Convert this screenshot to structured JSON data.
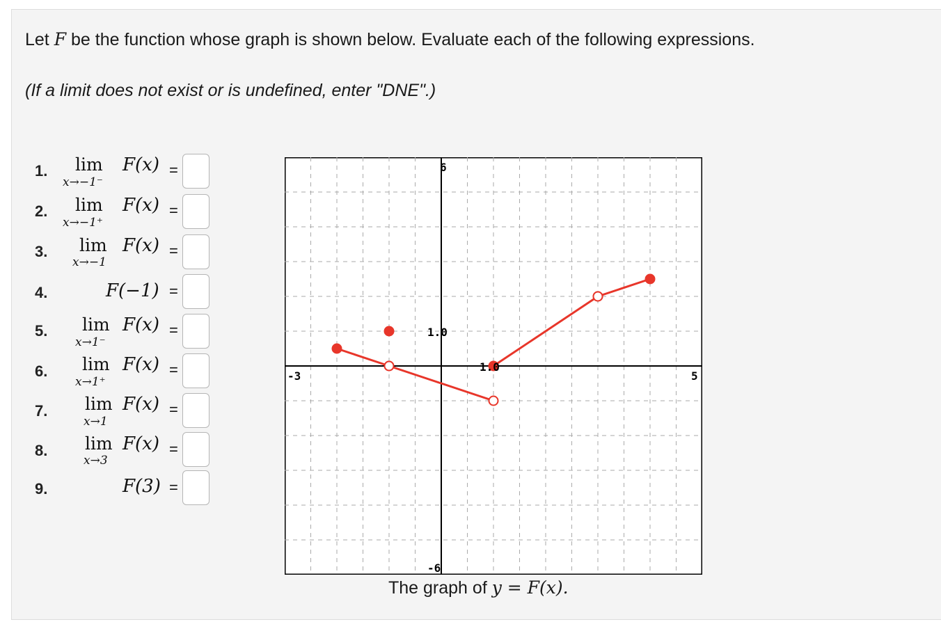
{
  "intro": {
    "text_before": "Let ",
    "function_name": "F",
    "text_after": " be the function whose graph is shown below. Evaluate each of the following expressions."
  },
  "hint": "(If a limit does not exist or is undefined, enter \"DNE\".)",
  "items": [
    {
      "number": "1.",
      "lim": "lim",
      "sub": "x→−1⁻",
      "func": "F(x)",
      "eq": "=",
      "value": ""
    },
    {
      "number": "2.",
      "lim": "lim",
      "sub": "x→−1⁺",
      "func": "F(x)",
      "eq": "=",
      "value": ""
    },
    {
      "number": "3.",
      "lim": "lim",
      "sub": "x→−1",
      "func": "F(x)",
      "eq": "=",
      "value": ""
    },
    {
      "number": "4.",
      "lim": "",
      "sub": "",
      "func": "F(−1)",
      "eq": "=",
      "value": ""
    },
    {
      "number": "5.",
      "lim": "lim",
      "sub": "x→1⁻",
      "func": "F(x)",
      "eq": "=",
      "value": ""
    },
    {
      "number": "6.",
      "lim": "lim",
      "sub": "x→1⁺",
      "func": "F(x)",
      "eq": "=",
      "value": ""
    },
    {
      "number": "7.",
      "lim": "lim",
      "sub": "x→1",
      "func": "F(x)",
      "eq": "=",
      "value": ""
    },
    {
      "number": "8.",
      "lim": "lim",
      "sub": "x→3",
      "func": "F(x)",
      "eq": "=",
      "value": ""
    },
    {
      "number": "9.",
      "lim": "",
      "sub": "",
      "func": "F(3)",
      "eq": "=",
      "value": ""
    }
  ],
  "graph": {
    "labels": {
      "y_max": "6",
      "y_min": "-6",
      "x_min": "-3",
      "x_max": "5",
      "y_tick": "1.0",
      "x_tick": "1.0"
    },
    "colors": {
      "curve": "#e8362a",
      "axis": "#000000",
      "grid": "#aaaaaa",
      "background": "#ffffff"
    }
  },
  "chart_data": {
    "type": "line",
    "title": "",
    "xlim": [
      -3,
      5
    ],
    "ylim": [
      -6,
      6
    ],
    "grid": true,
    "segments": [
      {
        "from": [
          -2,
          0.5
        ],
        "to": [
          -1,
          0
        ],
        "from_closed": true,
        "to_closed": false
      },
      {
        "from": [
          -1,
          0
        ],
        "to": [
          1,
          -1
        ],
        "from_closed": false,
        "to_closed": false
      },
      {
        "from": [
          1,
          0
        ],
        "to": [
          3,
          2
        ],
        "from_closed": true,
        "to_closed": false
      },
      {
        "from": [
          3,
          2
        ],
        "to": [
          4,
          2.5
        ],
        "from_closed": false,
        "to_closed": true
      }
    ],
    "points": [
      {
        "x": -1,
        "y": 1,
        "closed": true
      }
    ]
  },
  "caption": {
    "text": "The graph of ",
    "math": "y = F(x).",
    "_note_removed": true
  }
}
